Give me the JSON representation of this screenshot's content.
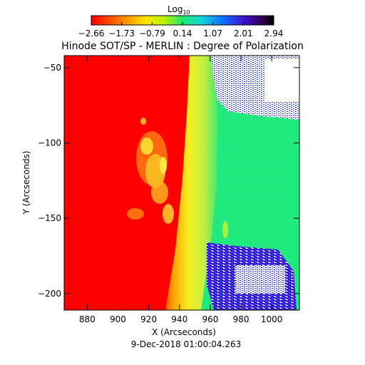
{
  "chart_data": {
    "type": "heatmap",
    "title": "Hinode SOT/SP - MERLIN : Degree of Polarization",
    "xlabel": "X (Arcseconds)",
    "ylabel": "Y (Arcseconds)",
    "date_label": "9-Dec-2018 01:00:04.263",
    "xlim": [
      865,
      1018
    ],
    "ylim": [
      -211,
      -42
    ],
    "x_ticks": [
      880,
      900,
      920,
      940,
      960,
      980,
      1000
    ],
    "y_ticks": [
      -50,
      -100,
      -150,
      -200
    ],
    "colorbar": {
      "label": "Log",
      "label_subscript": "10",
      "ticks": [
        "-2.66",
        "-1.73",
        "-0.79",
        "0.14",
        "1.07",
        "2.01",
        "2.94"
      ],
      "range": [
        -2.66,
        2.94
      ]
    },
    "regions": [
      {
        "name": "off-limb",
        "x_range": [
          865,
          938
        ],
        "log_value": -2.5,
        "color": "#ff0000"
      },
      {
        "name": "limb-transition",
        "x_range": [
          938,
          952
        ],
        "log_value": -0.4,
        "color": "#f5ee20"
      },
      {
        "name": "bright-patch",
        "x_center": 921,
        "y_center": -108,
        "log_value": -1.4,
        "color": "#f7b020"
      },
      {
        "name": "disk",
        "x_range": [
          952,
          1018
        ],
        "log_value": 0.1,
        "color": "#22e880"
      },
      {
        "name": "saturated-upper-right",
        "x_range": [
          960,
          1018
        ],
        "y_range": [
          -90,
          -42
        ],
        "log_value": 2.94,
        "color": "#ffffff"
      },
      {
        "name": "saturated-lower-right",
        "x_range": [
          956,
          1008
        ],
        "y_range": [
          -211,
          -165
        ],
        "log_value": 2.94,
        "color": "#ffffff"
      }
    ]
  }
}
